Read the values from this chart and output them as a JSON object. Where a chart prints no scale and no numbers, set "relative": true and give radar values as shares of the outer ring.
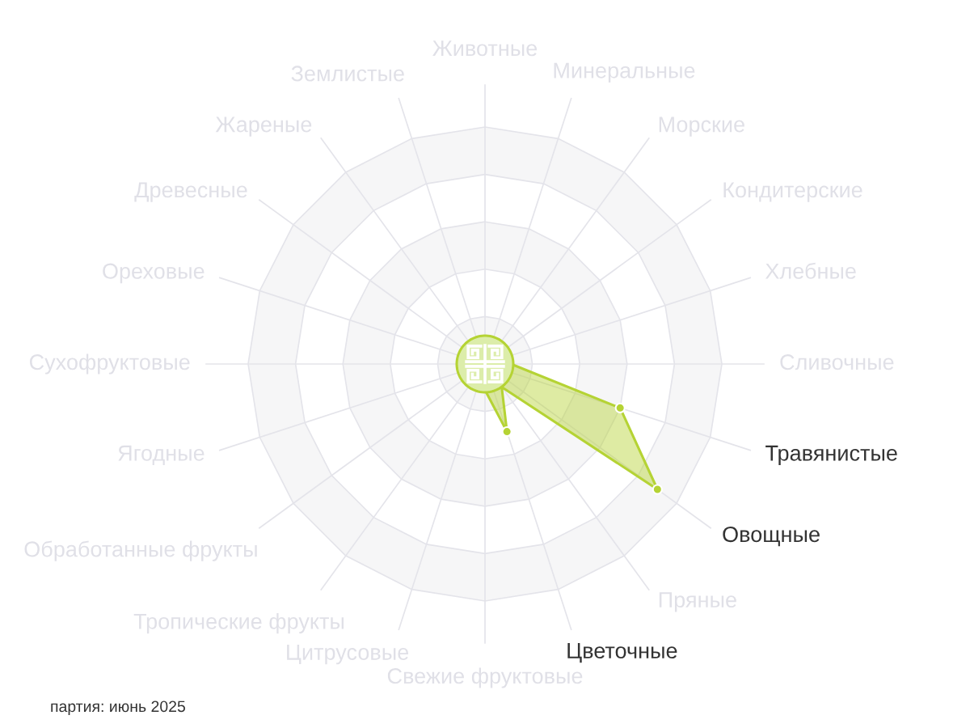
{
  "chart_data": {
    "type": "radar",
    "relative": true,
    "grid": true,
    "marker": "circle",
    "categories": [
      "Животные",
      "Минеральные",
      "Морские",
      "Кондитерские",
      "Хлебные",
      "Сливочные",
      "Травянистые",
      "Овощные",
      "Пряные",
      "Цветочные",
      "Свежие фруктовые",
      "Цитрусовые",
      "Тропические фрукты",
      "Обработанные фрукты",
      "Ягодные",
      "Сухофруктовые",
      "Ореховые",
      "Древесные",
      "Жареные",
      "Землистые"
    ],
    "series": [
      {
        "color": "#b5d334",
        "values": [
          null,
          null,
          null,
          null,
          null,
          0.11,
          0.6,
          0.9,
          0.12,
          0.3,
          0.11,
          null,
          null,
          null,
          null,
          null,
          null,
          null,
          null,
          null
        ]
      }
    ],
    "annotations": [
      "партия: июнь 2025"
    ]
  }
}
